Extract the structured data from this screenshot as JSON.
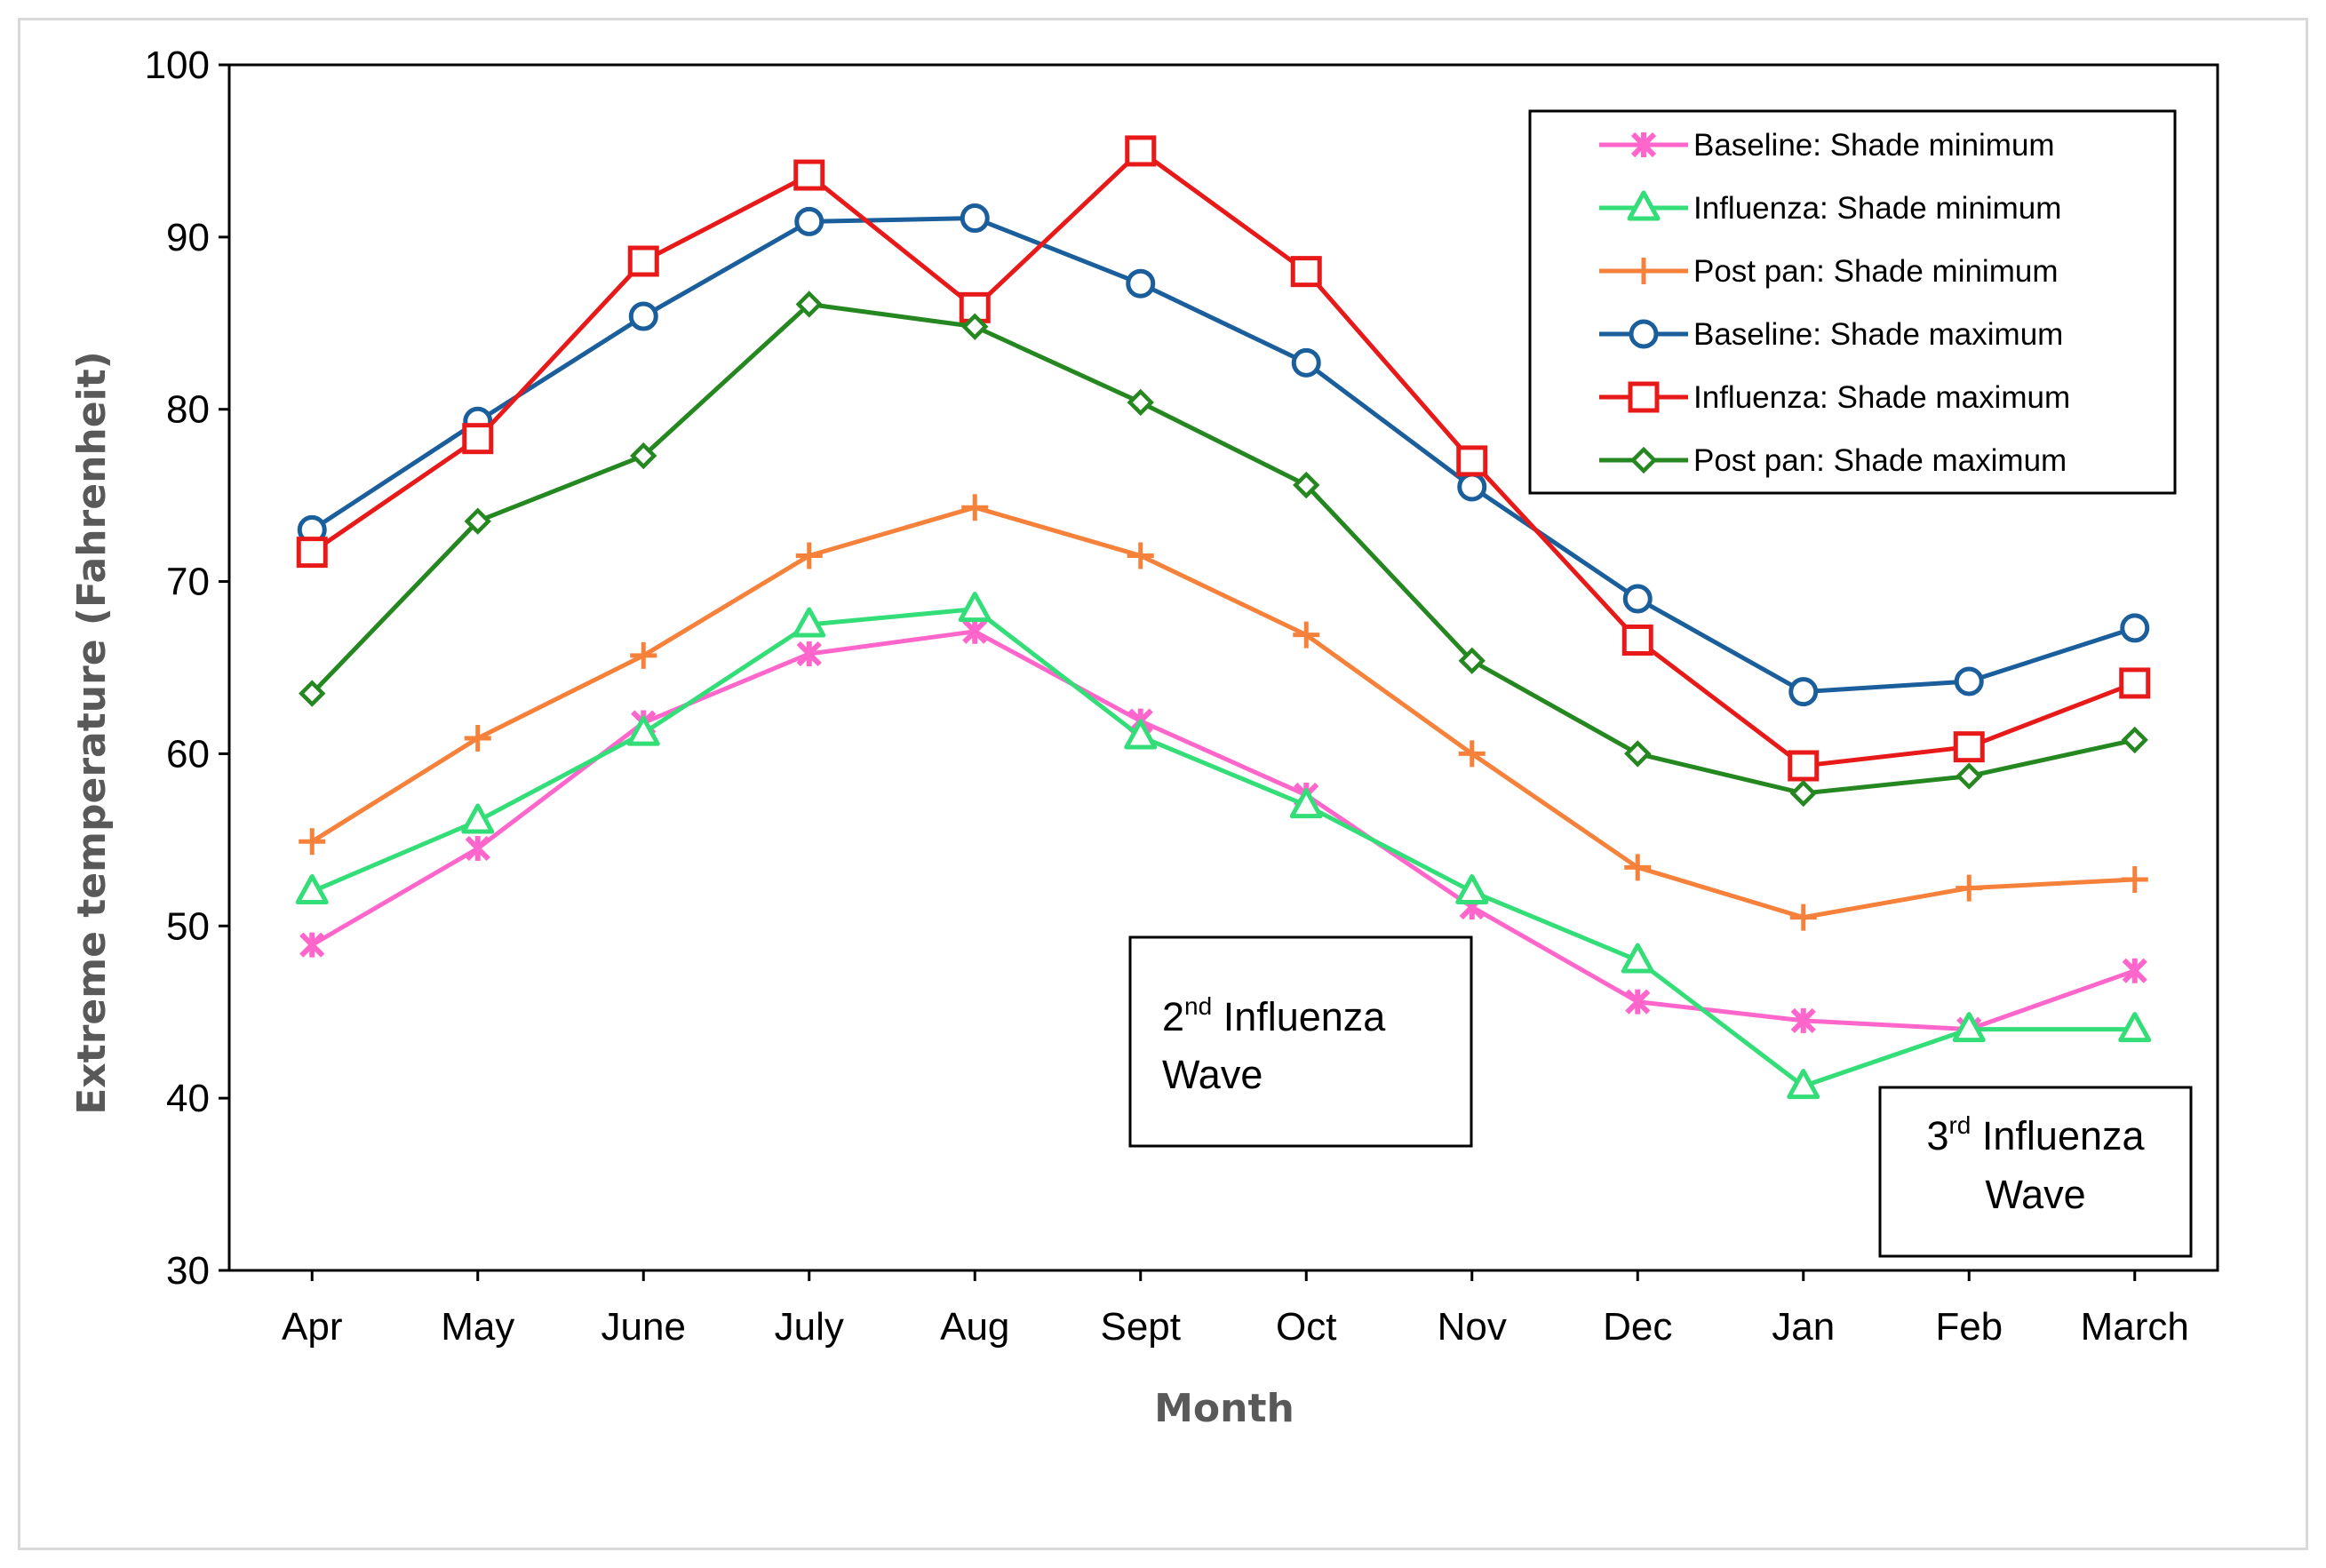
{
  "chart_data": {
    "type": "line",
    "title": "",
    "xlabel": "Month",
    "ylabel": "Extreme temperature (Fahrenheit)",
    "ylim": [
      30,
      100
    ],
    "yticks": [
      30,
      40,
      50,
      60,
      70,
      80,
      90,
      100
    ],
    "grid": false,
    "legend_position": "top-right",
    "categories": [
      "Apr",
      "May",
      "June",
      "July",
      "Aug",
      "Sept",
      "Oct",
      "Nov",
      "Dec",
      "Jan",
      "Feb",
      "March"
    ],
    "series": [
      {
        "name": "Baseline: Shade minimum",
        "color": "#ff66cc",
        "marker": "star",
        "values": [
          48.9,
          54.5,
          61.8,
          65.8,
          67.1,
          61.9,
          57.6,
          51.1,
          45.6,
          44.5,
          44.0,
          47.4
        ]
      },
      {
        "name": "Influenza: Shade minimum",
        "color": "#33dd77",
        "marker": "triangle",
        "values": [
          52.0,
          56.1,
          61.2,
          67.5,
          68.4,
          61.0,
          57.0,
          52.0,
          48.0,
          40.7,
          44.0,
          44.0
        ]
      },
      {
        "name": "Post pan: Shade minimum",
        "color": "#f5813b",
        "marker": "plus",
        "values": [
          54.9,
          60.9,
          65.7,
          71.5,
          74.3,
          71.5,
          66.9,
          60.0,
          53.4,
          50.5,
          52.2,
          52.7
        ]
      },
      {
        "name": "Baseline: Shade maximum",
        "color": "#1a5e9c",
        "marker": "circle",
        "values": [
          73.0,
          79.3,
          85.4,
          90.9,
          91.1,
          87.3,
          82.7,
          75.5,
          69.0,
          63.6,
          64.2,
          67.3
        ]
      },
      {
        "name": "Influenza: Shade maximum",
        "color": "#e81919",
        "marker": "square",
        "values": [
          71.7,
          78.3,
          88.6,
          93.6,
          85.9,
          95.0,
          88.0,
          77.0,
          66.6,
          59.3,
          60.4,
          64.1
        ]
      },
      {
        "name": "Post pan: Shade maximum",
        "color": "#24871f",
        "marker": "diamond",
        "values": [
          63.5,
          73.5,
          77.3,
          86.1,
          84.8,
          80.4,
          75.6,
          65.4,
          60.0,
          57.7,
          58.7,
          60.8
        ]
      }
    ],
    "annotations": [
      {
        "id": "wave2",
        "pre": "2",
        "sup": "nd",
        "line1": " Influenza",
        "line2": "Wave"
      },
      {
        "id": "wave3",
        "pre": "3",
        "sup": "rd",
        "line1": " Influenza",
        "line2": "Wave"
      }
    ]
  }
}
